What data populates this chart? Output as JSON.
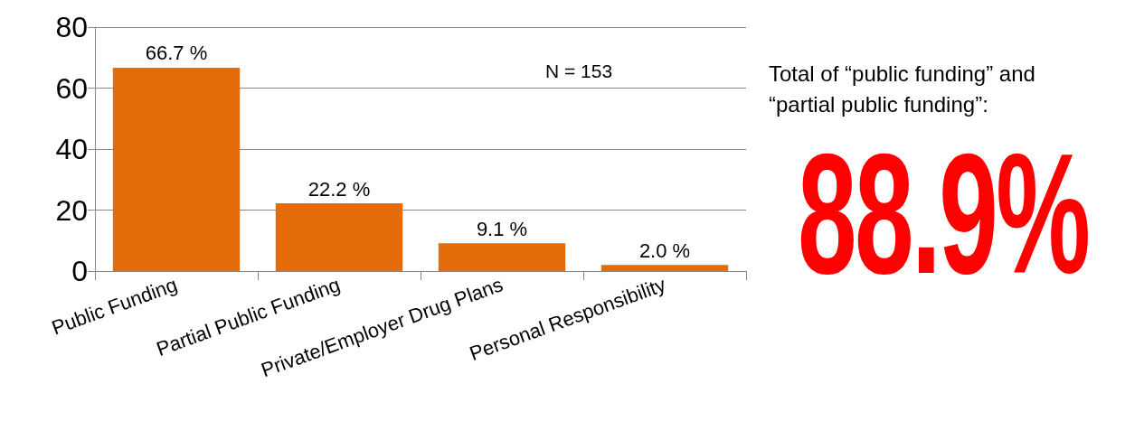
{
  "chart_data": [
    {
      "type": "bar",
      "categories": [
        "Public Funding",
        "Partial Public Funding",
        "Private/Employer Drug Plans",
        "Personal Responsibility"
      ],
      "values": [
        66.7,
        22.2,
        9.1,
        2.0
      ],
      "value_labels": [
        "66.7 %",
        "22.2 %",
        "9.1 %",
        "2.0 %"
      ],
      "color": "#e46c0a",
      "ylim": [
        0,
        80
      ],
      "yticks": [
        0,
        20,
        40,
        60,
        80
      ],
      "grid": "y",
      "annotations": [
        "N = 153"
      ]
    },
    {
      "type": "other",
      "title": "Total of “public funding” and “partial public funding”:",
      "annotations": [
        "88.9%"
      ],
      "color": "#ff0000"
    }
  ]
}
